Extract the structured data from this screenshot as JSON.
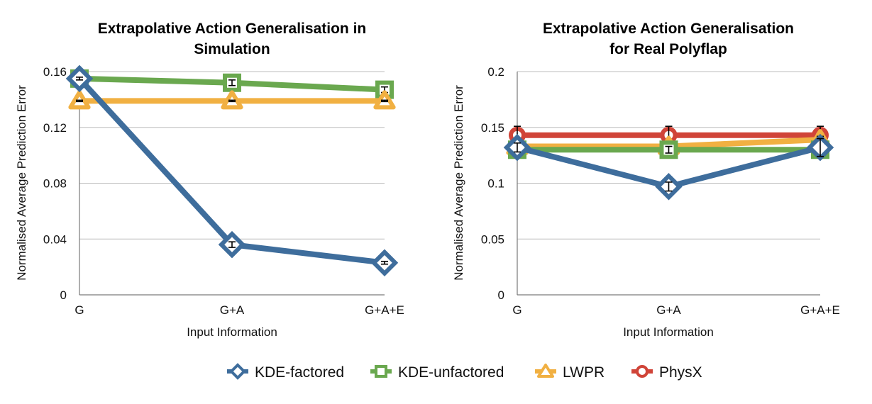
{
  "chart_data": [
    {
      "type": "line",
      "title_lines": [
        "Extrapolative Action Generalisation in",
        "Simulation"
      ],
      "xlabel": "Input Information",
      "ylabel": "Normalised Average Prediction Error",
      "categories": [
        "G",
        "G+A",
        "G+A+E"
      ],
      "ylim": [
        0,
        0.16
      ],
      "yticks": [
        "0",
        "0.04",
        "0.08",
        "0.12",
        "0.16"
      ],
      "grid": true,
      "series": [
        {
          "name": "KDE-unfactored",
          "values": [
            0.155,
            0.152,
            0.147
          ],
          "errors": [
            0.001,
            0.002,
            0.002
          ]
        },
        {
          "name": "LWPR",
          "values": [
            0.139,
            0.139,
            0.139
          ],
          "errors": [
            0.0005,
            0.0005,
            0.0005
          ]
        },
        {
          "name": "KDE-factored",
          "values": [
            0.155,
            0.036,
            0.023
          ],
          "errors": [
            0.001,
            0.002,
            0.001
          ]
        }
      ]
    },
    {
      "type": "line",
      "title_lines": [
        "Extrapolative Action Generalisation",
        "for Real Polyflap"
      ],
      "xlabel": "Input Information",
      "ylabel": "Normalised Average Prediction Error",
      "categories": [
        "G",
        "G+A",
        "G+A+E"
      ],
      "ylim": [
        0,
        0.2
      ],
      "yticks": [
        "0",
        "0.05",
        "0.1",
        "0.15",
        "0.2"
      ],
      "grid": true,
      "series": [
        {
          "name": "PhysX",
          "values": [
            0.143,
            0.143,
            0.143
          ],
          "errors": [
            0.008,
            0.008,
            0.008
          ]
        },
        {
          "name": "LWPR",
          "values": [
            0.133,
            0.133,
            0.139
          ],
          "errors": [
            0.003,
            0.003,
            0.003
          ]
        },
        {
          "name": "KDE-unfactored",
          "values": [
            0.13,
            0.13,
            0.13
          ],
          "errors": [
            0.003,
            0.003,
            0.003
          ]
        },
        {
          "name": "KDE-factored",
          "values": [
            0.132,
            0.097,
            0.132
          ],
          "errors": [
            0.004,
            0.004,
            0.008
          ]
        }
      ]
    }
  ],
  "legend": {
    "placement": "bottom",
    "items": [
      {
        "name": "KDE-factored",
        "color": "#3e6d9c",
        "marker": "diamond"
      },
      {
        "name": "KDE-unfactored",
        "color": "#6aa84f",
        "marker": "square"
      },
      {
        "name": "LWPR",
        "color": "#f1b042",
        "marker": "triangle"
      },
      {
        "name": "PhysX",
        "color": "#d04438",
        "marker": "circle"
      }
    ]
  }
}
